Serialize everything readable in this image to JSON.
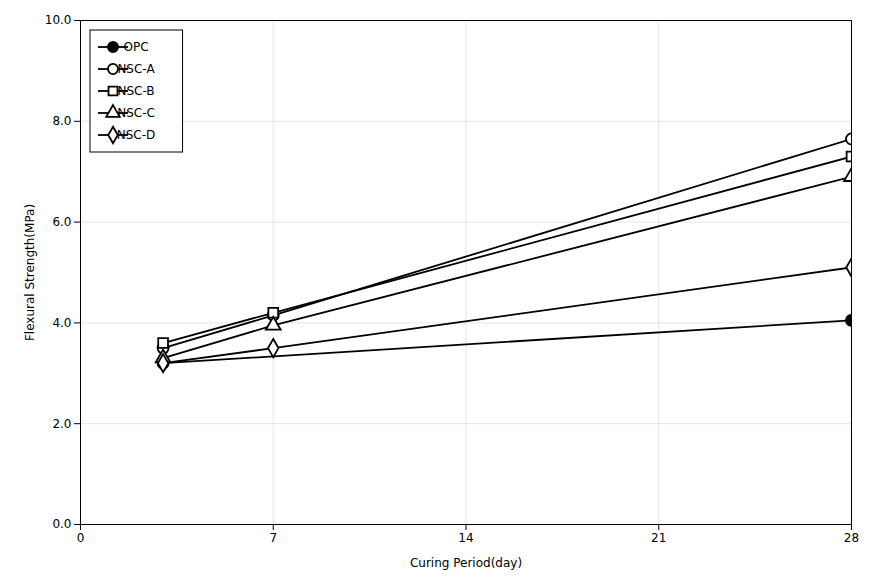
{
  "chart_data": {
    "type": "line",
    "xlabel": "Curing Period(day)",
    "ylabel": "Flexural Strength(MPa)",
    "color": "black",
    "series": [
      {
        "name": "OPC",
        "x": [
          3,
          28
        ],
        "values": [
          3.2,
          4.05
        ],
        "marker": "circle-filled"
      },
      {
        "name": "NSC-A",
        "x": [
          3,
          7,
          28
        ],
        "values": [
          3.5,
          4.15,
          7.65
        ],
        "marker": "circle"
      },
      {
        "name": "NSC-B",
        "x": [
          3,
          7,
          28
        ],
        "values": [
          3.6,
          4.2,
          7.3
        ],
        "marker": "square"
      },
      {
        "name": "NSC-C",
        "x": [
          3,
          7,
          28
        ],
        "values": [
          3.3,
          3.95,
          6.9
        ],
        "marker": "triangle"
      },
      {
        "name": "NSC-D",
        "x": [
          3,
          7,
          28
        ],
        "values": [
          3.2,
          3.5,
          5.1
        ],
        "marker": "diamond"
      }
    ],
    "xlim": [
      0,
      28
    ],
    "ylim": [
      0.0,
      10.0
    ],
    "xticks": [
      0,
      7,
      14,
      21,
      28
    ],
    "yticks": [
      {
        "value": 0,
        "label": "0.0"
      },
      {
        "value": 2,
        "label": "2.0"
      },
      {
        "value": 4,
        "label": "4.0"
      },
      {
        "value": 6,
        "label": "6.0"
      },
      {
        "value": 8,
        "label": "8.0"
      },
      {
        "value": 10,
        "label": "10.0"
      }
    ],
    "grid": true,
    "legend": "upper left"
  }
}
